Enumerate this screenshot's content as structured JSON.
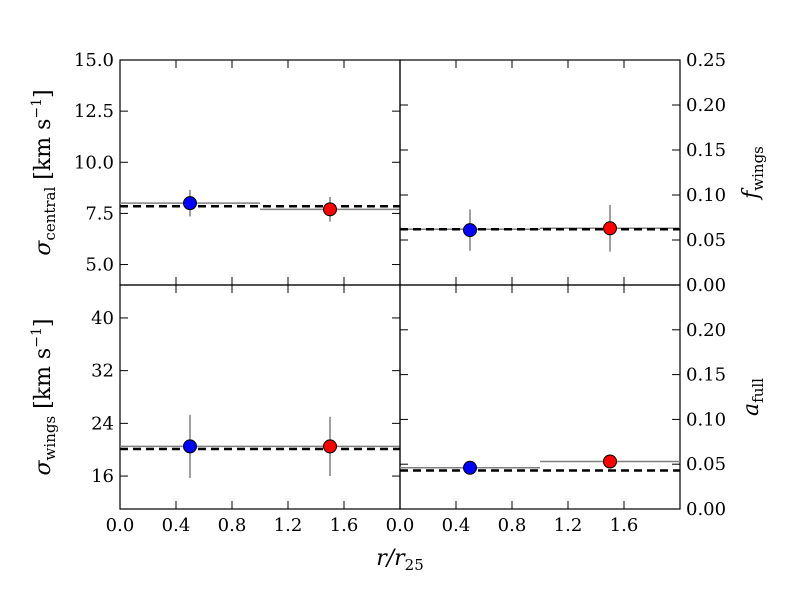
{
  "figure": {
    "x_label_main": "r/r",
    "x_label_sub": "25"
  },
  "chart_data": [
    {
      "type": "scatter",
      "panel": "top-left",
      "ylabel_main": "σ",
      "ylabel_sub": "central",
      "ylabel_unit": "[km s",
      "ylabel_unit_sup": "−1",
      "ylabel_unit_close": "]",
      "xlim": [
        0.0,
        2.0
      ],
      "ylim": [
        4.0,
        15.0
      ],
      "yticks": [
        5.0,
        7.5,
        10.0,
        12.5,
        15.0
      ],
      "ytick_labels": [
        "5.0",
        "7.5",
        "10.0",
        "12.5",
        "15.0"
      ],
      "yaxis_side": "left",
      "points": [
        {
          "x": 0.5,
          "y": 8.0,
          "yerr": 0.65,
          "color": "#0000ff"
        },
        {
          "x": 1.5,
          "y": 7.7,
          "yerr": 0.6,
          "color": "#ff0000"
        }
      ],
      "bin_lines": [
        {
          "x0": 0.0,
          "x1": 1.0,
          "y": 8.0
        },
        {
          "x0": 1.0,
          "x1": 2.0,
          "y": 7.7
        }
      ],
      "mean_line": 7.85
    },
    {
      "type": "scatter",
      "panel": "top-right",
      "ylabel_main": "f",
      "ylabel_sub": "wings",
      "xlim": [
        0.0,
        2.0
      ],
      "ylim": [
        0.0,
        0.25
      ],
      "yticks": [
        0.0,
        0.05,
        0.1,
        0.15,
        0.2,
        0.25
      ],
      "ytick_labels": [
        "0.00",
        "0.05",
        "0.10",
        "0.15",
        "0.20",
        "0.25"
      ],
      "yaxis_side": "right",
      "points": [
        {
          "x": 0.5,
          "y": 0.061,
          "yerr": 0.023,
          "color": "#0000ff"
        },
        {
          "x": 1.5,
          "y": 0.063,
          "yerr": 0.026,
          "color": "#ff0000"
        }
      ],
      "bin_lines": [
        {
          "x0": 0.0,
          "x1": 1.0,
          "y": 0.062
        },
        {
          "x0": 1.0,
          "x1": 2.0,
          "y": 0.063
        }
      ],
      "mean_line": 0.062
    },
    {
      "type": "scatter",
      "panel": "bottom-left",
      "ylabel_main": "σ",
      "ylabel_sub": "wings",
      "ylabel_unit": "[km s",
      "ylabel_unit_sup": "−1",
      "ylabel_unit_close": "]",
      "xlim": [
        0.0,
        2.0
      ],
      "ylim": [
        11.0,
        45.0
      ],
      "yticks": [
        16,
        24,
        32,
        40
      ],
      "ytick_labels": [
        "16",
        "24",
        "32",
        "40"
      ],
      "xticks": [
        0.0,
        0.4,
        0.8,
        1.2,
        1.6
      ],
      "xtick_labels": [
        "0.0",
        "0.4",
        "0.8",
        "1.2",
        "1.6"
      ],
      "yaxis_side": "left",
      "points": [
        {
          "x": 0.5,
          "y": 20.5,
          "yerr": 4.8,
          "color": "#0000ff"
        },
        {
          "x": 1.5,
          "y": 20.5,
          "yerr": 4.5,
          "color": "#ff0000"
        }
      ],
      "bin_lines": [
        {
          "x0": 0.0,
          "x1": 1.0,
          "y": 20.5
        },
        {
          "x0": 1.0,
          "x1": 2.0,
          "y": 20.5
        }
      ],
      "mean_line": 20.1
    },
    {
      "type": "scatter",
      "panel": "bottom-right",
      "ylabel_main": "a",
      "ylabel_sub": "full",
      "xlim": [
        0.0,
        2.0
      ],
      "ylim": [
        0.0,
        0.25
      ],
      "yticks": [
        0.0,
        0.05,
        0.1,
        0.15,
        0.2
      ],
      "ytick_labels": [
        "0.00",
        "0.05",
        "0.10",
        "0.15",
        "0.20"
      ],
      "xticks": [
        0.0,
        0.4,
        0.8,
        1.2,
        1.6
      ],
      "xtick_labels": [
        "0.0",
        "0.4",
        "0.8",
        "1.2",
        "1.6"
      ],
      "yaxis_side": "right",
      "points": [
        {
          "x": 0.5,
          "y": 0.046,
          "yerr": 0,
          "color": "#0000ff"
        },
        {
          "x": 1.5,
          "y": 0.053,
          "yerr": 0,
          "color": "#ff0000"
        }
      ],
      "bin_lines": [
        {
          "x0": 0.0,
          "x1": 1.0,
          "y": 0.046
        },
        {
          "x0": 1.0,
          "x1": 2.0,
          "y": 0.053
        }
      ],
      "mean_line": 0.043
    }
  ]
}
